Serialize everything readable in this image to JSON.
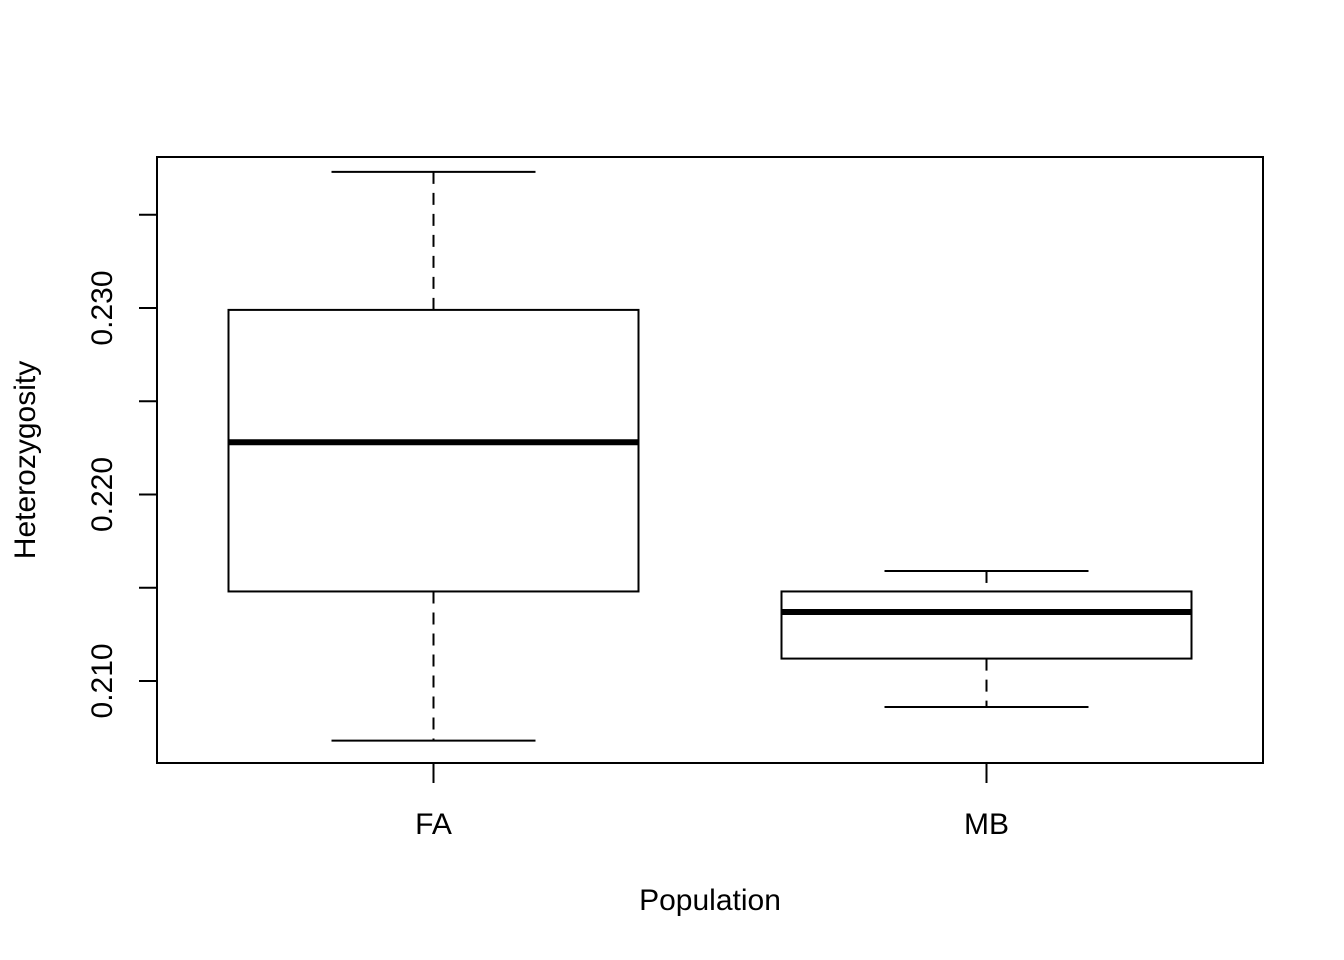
{
  "chart_data": {
    "type": "boxplot",
    "xlabel": "Population",
    "ylabel": "Heterozygosity",
    "categories": [
      "FA",
      "MB"
    ],
    "boxes": [
      {
        "category": "FA",
        "whisker_low": 0.2068,
        "q1": 0.2148,
        "median": 0.2228,
        "q3": 0.2299,
        "whisker_high": 0.2373
      },
      {
        "category": "MB",
        "whisker_low": 0.2086,
        "q1": 0.2112,
        "median": 0.2137,
        "q3": 0.2148,
        "whisker_high": 0.2159
      }
    ],
    "ylim": [
      0.2056,
      0.2381
    ],
    "yticks": [
      0.21,
      0.215,
      0.22,
      0.225,
      0.23,
      0.235
    ],
    "ytick_labels": [
      "0.210",
      "",
      "0.220",
      "",
      "0.230",
      ""
    ],
    "grid": false,
    "legend": "none"
  }
}
